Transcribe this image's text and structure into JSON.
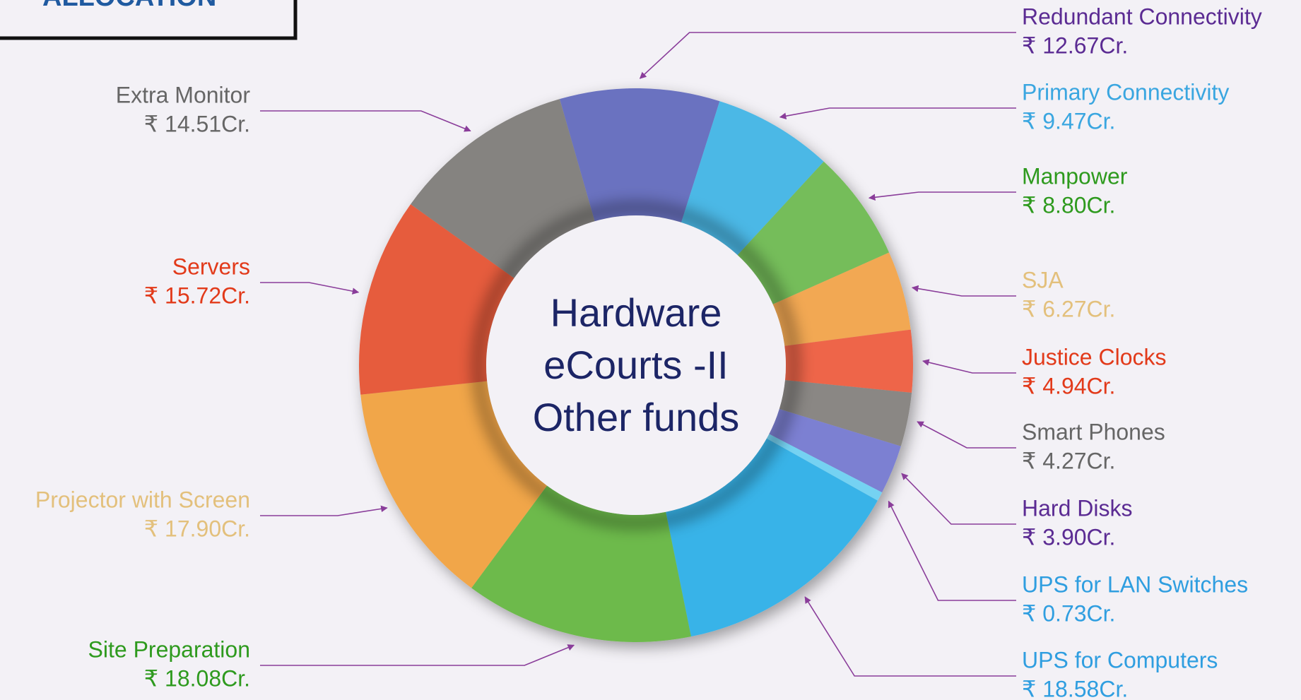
{
  "header": {
    "title": "ALLOCATION"
  },
  "chart_data": {
    "type": "donut",
    "center_lines": [
      "Hardware",
      "eCourts -II",
      "Other funds"
    ],
    "categories": [
      "Redundant Connectivity",
      "Primary Connectivity",
      "Manpower",
      "SJA",
      "Justice Clocks",
      "Smart Phones",
      "Hard Disks",
      "UPS for LAN Switches",
      "UPS for Computers",
      "Site Preparation",
      "Projector with Screen",
      "Servers",
      "Extra Monitor"
    ],
    "values": [
      12.67,
      9.47,
      8.8,
      6.27,
      4.94,
      4.27,
      3.9,
      0.73,
      18.58,
      18.08,
      17.9,
      15.72,
      14.51
    ],
    "value_labels": [
      "₹ 12.67Cr.",
      "₹ 9.47Cr.",
      "₹ 8.80Cr.",
      "₹ 6.27Cr.",
      "₹ 4.94Cr.",
      "₹ 4.27Cr.",
      "₹ 3.90Cr.",
      "₹ 0.73Cr.",
      "₹ 18.58Cr.",
      "₹ 18.08Cr.",
      "₹ 17.90Cr.",
      "₹ 15.72Cr.",
      "₹ 14.51Cr."
    ],
    "colors": [
      "#6b72c0",
      "#4cb8e6",
      "#74bd5a",
      "#f2a852",
      "#ee6548",
      "#8a8784",
      "#7c80d2",
      "#74d2f2",
      "#38b3e8",
      "#6dba4c",
      "#f1a64a",
      "#e65b3d",
      "#858380"
    ],
    "label_colors": [
      "#5b2b93",
      "#3aa6e0",
      "#2e9a1e",
      "#e3c07c",
      "#e23a1a",
      "#666666",
      "#5b2b93",
      "#2f9ee0",
      "#2f9ee0",
      "#2e9a1e",
      "#e3c07c",
      "#e23a1a",
      "#666666"
    ]
  }
}
